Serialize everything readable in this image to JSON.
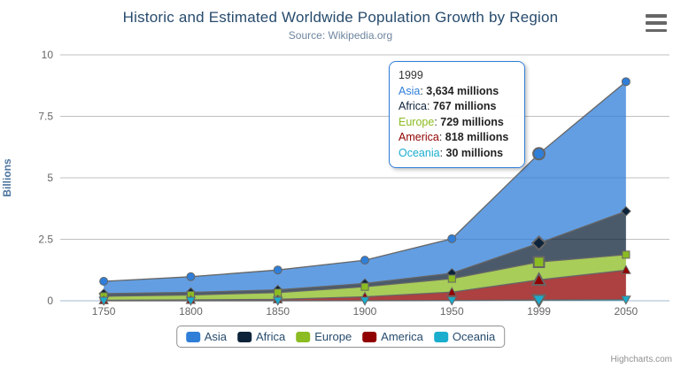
{
  "header": {
    "title": "Historic and Estimated Worldwide Population Growth by Region",
    "subtitle": "Source: Wikipedia.org"
  },
  "chart_data": {
    "type": "area",
    "stacking": "normal",
    "title": "Historic and Estimated Worldwide Population Growth by Region",
    "subtitle": "Source: Wikipedia.org",
    "categories": [
      "1750",
      "1800",
      "1850",
      "1900",
      "1950",
      "1999",
      "2050"
    ],
    "series": [
      {
        "name": "Asia",
        "color": "#2f7ed8",
        "symbol": "circle",
        "values": [
          502,
          635,
          809,
          947,
          1402,
          3634,
          5268
        ]
      },
      {
        "name": "Africa",
        "color": "#0d233a",
        "symbol": "diamond",
        "values": [
          106,
          107,
          111,
          133,
          221,
          767,
          1766
        ]
      },
      {
        "name": "Europe",
        "color": "#8bbc21",
        "symbol": "square",
        "values": [
          163,
          203,
          276,
          408,
          547,
          729,
          628
        ]
      },
      {
        "name": "America",
        "color": "#910000",
        "symbol": "triangle",
        "values": [
          18,
          31,
          54,
          156,
          339,
          818,
          1201
        ]
      },
      {
        "name": "Oceania",
        "color": "#1aadce",
        "symbol": "triangle-down",
        "values": [
          2,
          2,
          2,
          6,
          13,
          30,
          46
        ]
      }
    ],
    "values_unit": "millions",
    "xlabel": "",
    "ylabel": "Billions",
    "ylim": [
      0,
      10
    ],
    "y_ticks": [
      0,
      2.5,
      5,
      7.5,
      10
    ],
    "grid": true,
    "legend_position": "bottom",
    "hovered_category": "1999",
    "line_color": "#666666",
    "grid_color": "#C0C0C0",
    "axis_line_color": "#C0D0E0",
    "fill_opacity": 0.75
  },
  "tooltip": {
    "header": "1999",
    "rows": [
      {
        "name": "Asia",
        "color": "#2f7ed8",
        "value": "3,634 millions"
      },
      {
        "name": "Africa",
        "color": "#0d233a",
        "value": "767 millions"
      },
      {
        "name": "Europe",
        "color": "#8bbc21",
        "value": "729 millions"
      },
      {
        "name": "America",
        "color": "#910000",
        "value": "818 millions"
      },
      {
        "name": "Oceania",
        "color": "#1aadce",
        "value": "30 millions"
      }
    ]
  },
  "legend": {
    "items": [
      {
        "label": "Asia",
        "color": "#2f7ed8"
      },
      {
        "label": "Africa",
        "color": "#0d233a"
      },
      {
        "label": "Europe",
        "color": "#8bbc21"
      },
      {
        "label": "America",
        "color": "#910000"
      },
      {
        "label": "Oceania",
        "color": "#1aadce"
      }
    ]
  },
  "credits": {
    "label": "Highcharts.com"
  }
}
